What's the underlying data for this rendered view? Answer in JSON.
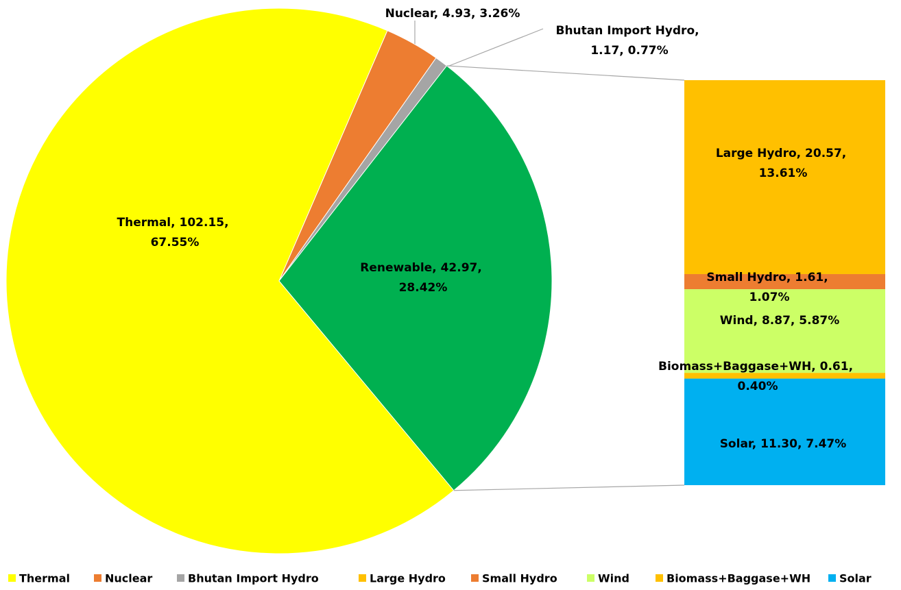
{
  "chart_data": {
    "type": "pie-of-bar",
    "categories": [
      "Thermal",
      "Nuclear",
      "Bhutan Import Hydro",
      "Renewable"
    ],
    "values": [
      102.15,
      4.93,
      1.17,
      42.97
    ],
    "value_labels": [
      "Thermal, 102.15, 67.55%",
      "Nuclear, 4.93, 3.26%",
      "Bhutan Import Hydro, 1.17, 0.77%",
      "Renewable, 42.97, 28.42%"
    ],
    "colors": [
      "#ffff00",
      "#ed7d31",
      "#a5a5a5",
      "#00b050"
    ],
    "breakdown": {
      "categories": [
        "Large Hydro",
        "Small Hydro",
        "Wind",
        "Biomass+Baggase+WH",
        "Solar"
      ],
      "values": [
        20.57,
        1.61,
        8.87,
        0.61,
        11.3
      ],
      "value_labels": [
        "Large Hydro, 20.57, 13.61%",
        "Small Hydro, 1.61, 1.07%",
        "Wind, 8.87, 5.87%",
        "Biomass+Baggase+WH, 0.61, 0.40%",
        "Solar, 11.30, 7.47%"
      ],
      "colors": [
        "#ffc000",
        "#ed7d31",
        "#ccff66",
        "#ffc000",
        "#00b0f0"
      ]
    },
    "legend": "bottom"
  }
}
